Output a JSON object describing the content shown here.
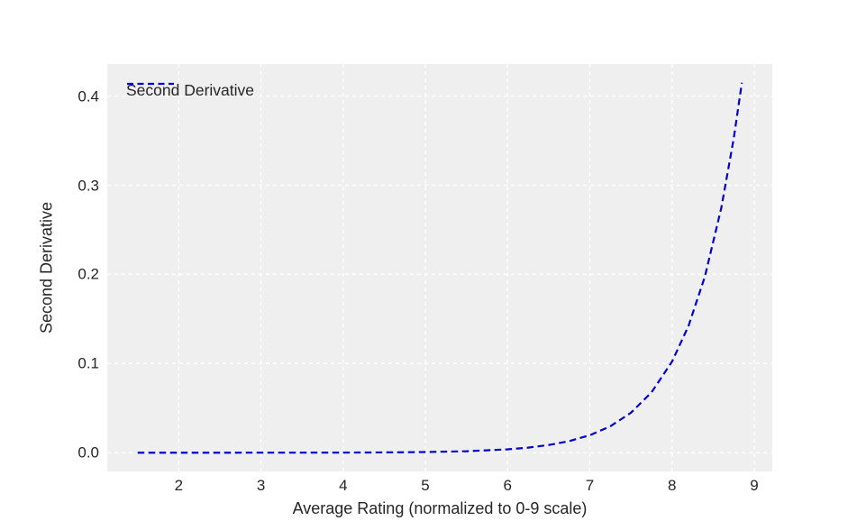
{
  "figure": {
    "background_color": "#ffffff",
    "axes_background_color": "#efefef",
    "grid_color": "#ffffff",
    "text_color": "#262626"
  },
  "legend": {
    "label": "Second Derivative",
    "line_icon": "dashed-blue-line"
  },
  "chart_data": {
    "type": "line",
    "title": "",
    "xlabel": "Average Rating (normalized to 0-9 scale)",
    "ylabel": "Second Derivative",
    "xlim": [
      1.13,
      9.22
    ],
    "ylim": [
      -0.021,
      0.436
    ],
    "x_ticks": [
      2,
      3,
      4,
      5,
      6,
      7,
      8,
      9
    ],
    "x_tick_labels": [
      "2",
      "3",
      "4",
      "5",
      "6",
      "7",
      "8",
      "9"
    ],
    "y_ticks": [
      0.0,
      0.1,
      0.2,
      0.3,
      0.4
    ],
    "y_tick_labels": [
      "0.0",
      "0.1",
      "0.2",
      "0.3",
      "0.4"
    ],
    "grid": true,
    "grid_linestyle": "dashed",
    "legend_position": "upper left",
    "series": [
      {
        "name": "Second Derivative",
        "color": "#0000cd",
        "linestyle": "dashed",
        "linewidth": 2.2,
        "x": [
          1.5,
          2.0,
          2.5,
          3.0,
          3.5,
          4.0,
          4.5,
          5.0,
          5.5,
          6.0,
          6.25,
          6.5,
          6.75,
          7.0,
          7.25,
          7.5,
          7.75,
          8.0,
          8.2,
          8.4,
          8.6,
          8.75,
          8.85
        ],
        "y": [
          2e-06,
          5e-06,
          1.2e-05,
          2.7e-05,
          6.1e-05,
          0.000139,
          0.000317,
          0.000723,
          0.001647,
          0.003764,
          0.005694,
          0.008599,
          0.012981,
          0.0196,
          0.029614,
          0.044766,
          0.067599,
          0.102098,
          0.141996,
          0.197515,
          0.274738,
          0.351879,
          0.415
        ]
      }
    ]
  }
}
